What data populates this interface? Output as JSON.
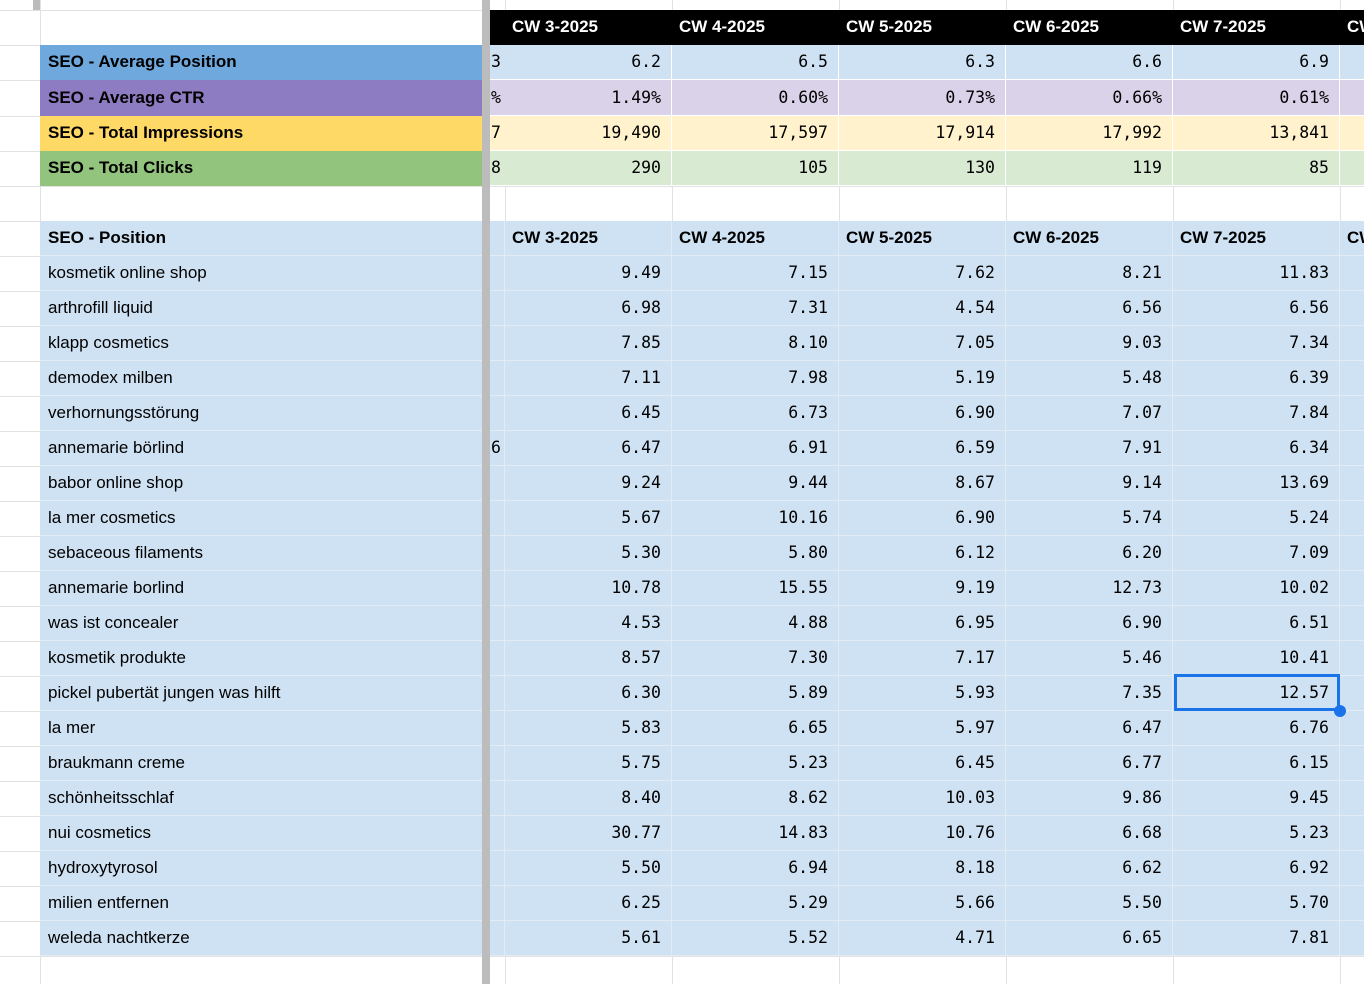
{
  "colors": {
    "header_bg": "#000000",
    "header_text": "#ffffff",
    "divider": "#bcbcbc",
    "selection": "#1a73e8",
    "table_bg": "#cfe2f3",
    "gridline_white_area": "#e2e2e2",
    "gridline_blue_area": "#e4ecf3",
    "summary_separator": "#ffffff"
  },
  "week_columns": [
    "CW 3-2025",
    "CW 4-2025",
    "CW 5-2025",
    "CW 6-2025",
    "CW 7-2025"
  ],
  "partial_week_column": "CW",
  "summary": {
    "rows": [
      {
        "label": "SEO - Average Position",
        "label_bg": "#6fa8dc",
        "value_bg": "#cfe2f3",
        "sliver": "3",
        "values": [
          "6.2",
          "6.5",
          "6.3",
          "6.6",
          "6.9"
        ]
      },
      {
        "label": "SEO - Average CTR",
        "label_bg": "#8e7cc3",
        "value_bg": "#d9d2e9",
        "sliver": "%",
        "values": [
          "1.49%",
          "0.60%",
          "0.73%",
          "0.66%",
          "0.61%"
        ]
      },
      {
        "label": "SEO - Total Impressions",
        "label_bg": "#ffd966",
        "value_bg": "#fff2cc",
        "sliver": "7",
        "values": [
          "19,490",
          "17,597",
          "17,914",
          "17,992",
          "13,841"
        ]
      },
      {
        "label": "SEO - Total Clicks",
        "label_bg": "#93c47d",
        "value_bg": "#d9ead3",
        "sliver": "8",
        "values": [
          "290",
          "105",
          "130",
          "119",
          "85"
        ]
      }
    ]
  },
  "positions": {
    "title": "SEO - Position",
    "rows": [
      {
        "keyword": "kosmetik online shop",
        "sliver": "",
        "values": [
          "9.49",
          "7.15",
          "7.62",
          "8.21",
          "11.83"
        ]
      },
      {
        "keyword": "arthrofill liquid",
        "sliver": "",
        "values": [
          "6.98",
          "7.31",
          "4.54",
          "6.56",
          "6.56"
        ]
      },
      {
        "keyword": "klapp cosmetics",
        "sliver": "",
        "values": [
          "7.85",
          "8.10",
          "7.05",
          "9.03",
          "7.34"
        ]
      },
      {
        "keyword": "demodex milben",
        "sliver": "",
        "values": [
          "7.11",
          "7.98",
          "5.19",
          "5.48",
          "6.39"
        ]
      },
      {
        "keyword": "verhornungsstörung",
        "sliver": "",
        "values": [
          "6.45",
          "6.73",
          "6.90",
          "7.07",
          "7.84"
        ]
      },
      {
        "keyword": "annemarie börlind",
        "sliver": "6",
        "values": [
          "6.47",
          "6.91",
          "6.59",
          "7.91",
          "6.34"
        ]
      },
      {
        "keyword": "babor online shop",
        "sliver": "",
        "values": [
          "9.24",
          "9.44",
          "8.67",
          "9.14",
          "13.69"
        ]
      },
      {
        "keyword": "la mer cosmetics",
        "sliver": "",
        "values": [
          "5.67",
          "10.16",
          "6.90",
          "5.74",
          "5.24"
        ]
      },
      {
        "keyword": "sebaceous filaments",
        "sliver": "",
        "values": [
          "5.30",
          "5.80",
          "6.12",
          "6.20",
          "7.09"
        ]
      },
      {
        "keyword": "annemarie borlind",
        "sliver": "",
        "values": [
          "10.78",
          "15.55",
          "9.19",
          "12.73",
          "10.02"
        ]
      },
      {
        "keyword": "was ist concealer",
        "sliver": "",
        "values": [
          "4.53",
          "4.88",
          "6.95",
          "6.90",
          "6.51"
        ]
      },
      {
        "keyword": "kosmetik produkte",
        "sliver": "",
        "values": [
          "8.57",
          "7.30",
          "7.17",
          "5.46",
          "10.41"
        ]
      },
      {
        "keyword": "pickel pubertät jungen was hilft",
        "sliver": "",
        "values": [
          "6.30",
          "5.89",
          "5.93",
          "7.35",
          "12.57"
        ]
      },
      {
        "keyword": "la mer",
        "sliver": "",
        "values": [
          "5.83",
          "6.65",
          "5.97",
          "6.47",
          "6.76"
        ]
      },
      {
        "keyword": "braukmann creme",
        "sliver": "",
        "values": [
          "5.75",
          "5.23",
          "6.45",
          "6.77",
          "6.15"
        ]
      },
      {
        "keyword": "schönheitsschlaf",
        "sliver": "",
        "values": [
          "8.40",
          "8.62",
          "10.03",
          "9.86",
          "9.45"
        ]
      },
      {
        "keyword": "nui cosmetics",
        "sliver": "",
        "values": [
          "30.77",
          "14.83",
          "10.76",
          "6.68",
          "5.23"
        ]
      },
      {
        "keyword": "hydroxytyrosol",
        "sliver": "",
        "values": [
          "5.50",
          "6.94",
          "8.18",
          "6.62",
          "6.92"
        ]
      },
      {
        "keyword": "milien entfernen",
        "sliver": "",
        "values": [
          "6.25",
          "5.29",
          "5.66",
          "5.50",
          "5.70"
        ]
      },
      {
        "keyword": "weleda nachtkerze",
        "sliver": "",
        "values": [
          "5.61",
          "5.52",
          "4.71",
          "6.65",
          "7.81"
        ]
      }
    ],
    "selected_cell": {
      "row_index": 12,
      "col_index": 4,
      "value": "12.57"
    }
  }
}
